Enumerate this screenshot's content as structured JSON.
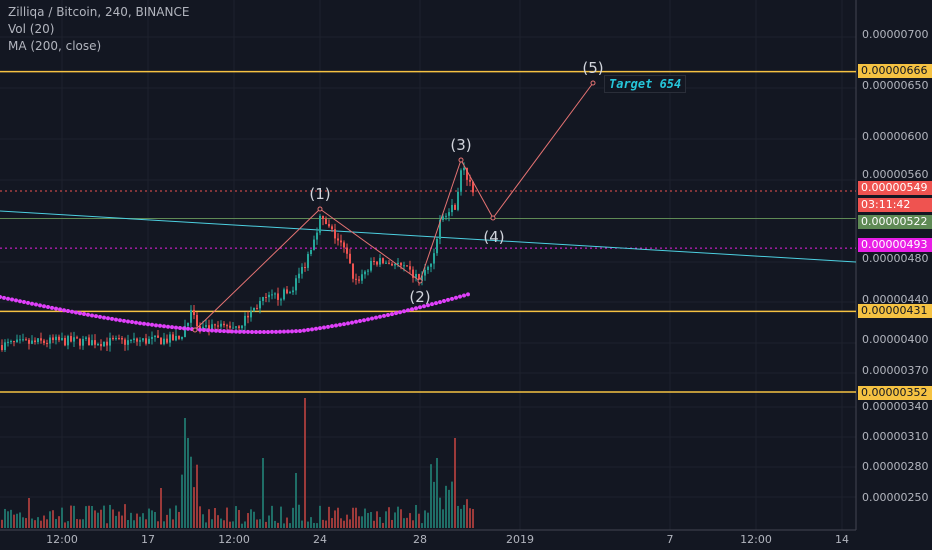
{
  "legend": {
    "symbol": "Zilliqa / Bitcoin, 240, BINANCE",
    "volume": "Vol (20)",
    "ma": "MA (200, close)"
  },
  "annotations": {
    "target": "Target 654",
    "waves": [
      "(1)",
      "(2)",
      "(3)",
      "(4)",
      "(5)"
    ]
  },
  "price_axis": {
    "ticks": [
      "0.00000700",
      "0.00000650",
      "0.00000600",
      "0.00000560",
      "0.00000480",
      "0.00000440",
      "0.00000400",
      "0.00000370",
      "0.00000340",
      "0.00000310",
      "0.00000280",
      "0.00000250"
    ]
  },
  "price_tags": {
    "level_666": "0.00000666",
    "last_price": "0.00000549",
    "countdown": "03:11:42",
    "level_522": "0.00000522",
    "level_493": "0.00000493",
    "level_431": "0.00000431",
    "level_352": "0.00000352"
  },
  "time_axis": {
    "ticks": [
      "12:00",
      "17",
      "12:00",
      "24",
      "28",
      "2019",
      "7",
      "12:00",
      "14"
    ]
  },
  "colors": {
    "background": "#131722",
    "up": "#26a69a",
    "down": "#ef5350",
    "vol_up": "#1f6e67",
    "vol_down": "#9c3a3a",
    "ma": "#e040fb",
    "orange_level": "#f5c242",
    "last_price": "#ef5350",
    "level_522": "#5f8a55",
    "level_493": "#e91ee6",
    "trendline": "#4dd0e1",
    "wave_line": "#e57373"
  },
  "chart_data": {
    "type": "candlestick",
    "symbol": "Zilliqa / Bitcoin",
    "interval": "240",
    "exchange": "BINANCE",
    "indicators": [
      "Vol (20)",
      "MA (200, close)"
    ],
    "horizontal_levels": [
      6.66e-06,
      5.49e-06,
      5.22e-06,
      4.93e-06,
      4.31e-06,
      3.52e-06
    ],
    "elliott_waves": [
      {
        "label": "(1)",
        "price": 5.22e-06
      },
      {
        "label": "(2)",
        "price": 4.62e-06
      },
      {
        "label": "(3)",
        "price": 5.72e-06
      },
      {
        "label": "(4)",
        "price": 5.2e-06
      },
      {
        "label": "(5)",
        "price": 6.54e-06
      }
    ],
    "target": "Target 654",
    "ylim_price": [
      2.4e-06,
      7.2e-06
    ],
    "x_ticks": [
      "12:00",
      "17",
      "12:00",
      "24",
      "28",
      "2019",
      "7",
      "12:00",
      "14"
    ]
  }
}
